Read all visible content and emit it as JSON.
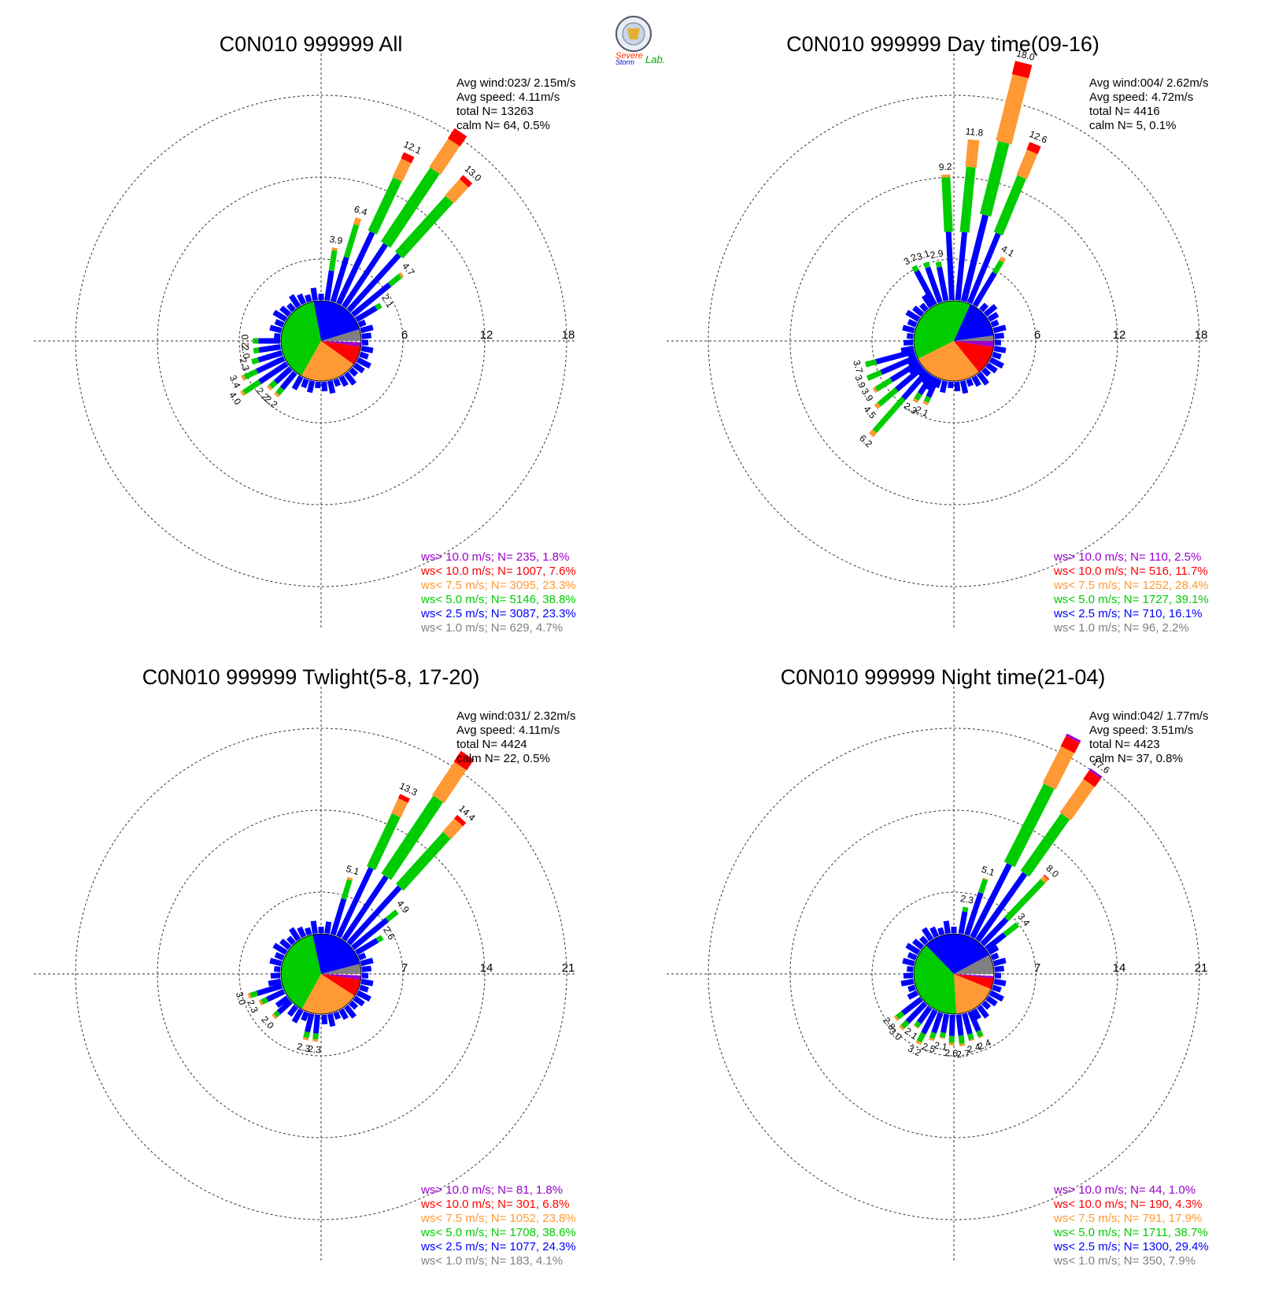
{
  "logo": {
    "line1": "Severe",
    "line2": "Storm",
    "line3": "Lab."
  },
  "speed_classes": {
    "colors": [
      "#808080",
      "#0000ff",
      "#00cc00",
      "#ff9933",
      "#ff0000",
      "#9900cc"
    ]
  },
  "chart_data": [
    {
      "type": "windrose",
      "title": "C0N010 999999 All",
      "stats": {
        "avg_wind": "Avg wind:023/ 2.15m/s",
        "avg_speed": "Avg speed: 4.11m/s",
        "total": "total N=      13263",
        "calm": "calm N=     64,   0.5%"
      },
      "ring_max": 18,
      "rings": [
        "6",
        "12",
        "18"
      ],
      "pie_percent": [
        4.7,
        23.3,
        38.8,
        23.3,
        7.6,
        1.8
      ],
      "bars": [
        {
          "dir": 8.4,
          "total": 3.9,
          "label": "3.9",
          "parts": [
            2.2,
            1.5,
            0.2
          ]
        },
        {
          "dir": 16.9,
          "total": 6.4,
          "label": "6.4",
          "parts": [
            3.4,
            2.5,
            0.5
          ]
        },
        {
          "dir": 25.3,
          "total": 12.1,
          "label": "12.1",
          "parts": [
            5.8,
            4.3,
            1.5,
            0.5
          ]
        },
        {
          "dir": 33.8,
          "total": 15.4,
          "label": "",
          "parts": [
            5.5,
            6.5,
            2.5,
            0.9
          ]
        },
        {
          "dir": 42.2,
          "total": 13.0,
          "label": "13.0",
          "parts": [
            5.5,
            5.5,
            1.6,
            0.4
          ]
        },
        {
          "dir": 50.6,
          "total": 4.7,
          "label": "4.7",
          "parts": [
            3.5,
            1.0,
            0.2
          ]
        },
        {
          "dir": 59.1,
          "total": 2.1,
          "label": "2.1",
          "parts": [
            1.7,
            0.4
          ]
        },
        {
          "dir": 219.4,
          "total": 2.2,
          "label": "2.2",
          "parts": [
            1.5,
            0.5,
            0.2
          ]
        },
        {
          "dir": 227.8,
          "total": 2.2,
          "label": "2.2",
          "parts": [
            1.5,
            0.5,
            0.2
          ]
        },
        {
          "dir": 236.3,
          "total": 4.0,
          "label": "4.0",
          "parts": [
            2.4,
            1.4,
            0.2
          ]
        },
        {
          "dir": 244.7,
          "total": 3.4,
          "label": "3.4",
          "parts": [
            2.2,
            1.0,
            0.2
          ]
        },
        {
          "dir": 253.1,
          "total": 2.3,
          "label": "2.3",
          "parts": [
            1.8,
            0.5
          ]
        },
        {
          "dir": 261.6,
          "total": 2.0,
          "label": "2.0",
          "parts": [
            1.6,
            0.4
          ]
        },
        {
          "dir": 270.0,
          "total": 2.0,
          "label": "2.0",
          "parts": [
            1.6,
            0.4
          ]
        }
      ]
    },
    {
      "type": "windrose",
      "title": "C0N010 999999 Day time(09-16)",
      "stats": {
        "avg_wind": "Avg wind:004/ 2.62m/s",
        "avg_speed": "Avg speed: 4.72m/s",
        "total": "total N=       4416",
        "calm": "calm N=      5,   0.1%"
      },
      "ring_max": 18,
      "rings": [
        "6",
        "12",
        "18"
      ],
      "pie_percent": [
        2.2,
        16.1,
        39.1,
        28.4,
        11.7,
        2.5
      ],
      "bars": [
        {
          "dir": 331.9,
          "total": 3.2,
          "label": "3.2",
          "parts": [
            2.8,
            0.4
          ]
        },
        {
          "dir": 340.3,
          "total": 3.1,
          "label": "3.1",
          "parts": [
            2.7,
            0.4
          ]
        },
        {
          "dir": 348.8,
          "total": 2.9,
          "label": "2.9",
          "parts": [
            2.5,
            0.4
          ]
        },
        {
          "dir": 357.2,
          "total": 9.2,
          "label": "9.2",
          "parts": [
            5.0,
            4.0,
            0.2
          ]
        },
        {
          "dir": 5.6,
          "total": 11.8,
          "label": "11.8",
          "parts": [
            5.0,
            4.8,
            2.0
          ]
        },
        {
          "dir": 14.1,
          "total": 18.0,
          "label": "18.0",
          "parts": [
            6.5,
            5.5,
            5.0,
            1.0
          ]
        },
        {
          "dir": 22.5,
          "total": 12.6,
          "label": "12.6",
          "parts": [
            5.5,
            4.5,
            2.0,
            0.6
          ]
        },
        {
          "dir": 30.9,
          "total": 4.1,
          "label": "4.1",
          "parts": [
            2.8,
            1.0,
            0.3
          ]
        },
        {
          "dir": 204.4,
          "total": 2.1,
          "label": "2.1",
          "parts": [
            1.5,
            0.4,
            0.2
          ]
        },
        {
          "dir": 212.8,
          "total": 2.3,
          "label": "2.3",
          "parts": [
            1.6,
            0.5,
            0.2
          ]
        },
        {
          "dir": 221.3,
          "total": 6.2,
          "label": "6.2",
          "parts": [
            2.6,
            3.2,
            0.4
          ]
        },
        {
          "dir": 229.7,
          "total": 4.5,
          "label": "4.5",
          "parts": [
            2.5,
            1.7,
            0.3
          ]
        },
        {
          "dir": 238.1,
          "total": 3.9,
          "label": "3.9",
          "parts": [
            2.4,
            1.3,
            0.2
          ]
        },
        {
          "dir": 246.6,
          "total": 3.9,
          "label": "3.9",
          "parts": [
            2.8,
            1.1
          ]
        },
        {
          "dir": 255.0,
          "total": 3.7,
          "label": "3.7",
          "parts": [
            2.9,
            0.8
          ]
        }
      ]
    },
    {
      "type": "windrose",
      "title": "C0N010 999999 Twlight(5-8, 17-20)",
      "stats": {
        "avg_wind": "Avg wind:031/ 2.32m/s",
        "avg_speed": "Avg speed: 4.11m/s",
        "total": "total N=       4424",
        "calm": "calm N=     22,   0.5%"
      },
      "ring_max": 21,
      "rings": [
        "7",
        "14",
        "21"
      ],
      "pie_percent": [
        4.1,
        24.3,
        38.6,
        23.8,
        6.8,
        1.8
      ],
      "bars": [
        {
          "dir": 16.9,
          "total": 5.1,
          "label": "5.1",
          "parts": [
            3.2,
            1.7,
            0.2
          ]
        },
        {
          "dir": 25.3,
          "total": 13.3,
          "label": "13.3",
          "parts": [
            6.5,
            5.0,
            1.4,
            0.4
          ]
        },
        {
          "dir": 33.8,
          "total": 19.0,
          "label": "",
          "parts": [
            6.5,
            8.0,
            3.4,
            1.1
          ]
        },
        {
          "dir": 42.2,
          "total": 14.4,
          "label": "14.4",
          "parts": [
            6.5,
            6.0,
            1.5,
            0.4
          ]
        },
        {
          "dir": 50.6,
          "total": 4.9,
          "label": "4.9",
          "parts": [
            3.8,
            1.1
          ]
        },
        {
          "dir": 59.1,
          "total": 2.6,
          "label": "2.6",
          "parts": [
            2.1,
            0.5
          ]
        },
        {
          "dir": 185.0,
          "total": 2.3,
          "label": "2.3",
          "parts": [
            1.6,
            0.5,
            0.2
          ]
        },
        {
          "dir": 193.4,
          "total": 2.3,
          "label": "2.3",
          "parts": [
            1.6,
            0.5,
            0.2
          ]
        },
        {
          "dir": 227.8,
          "total": 2.0,
          "label": "2.0",
          "parts": [
            1.4,
            0.4,
            0.2
          ]
        },
        {
          "dir": 244.7,
          "total": 2.3,
          "label": "2.3",
          "parts": [
            1.6,
            0.5,
            0.2
          ]
        },
        {
          "dir": 253.1,
          "total": 3.0,
          "label": "3.0",
          "parts": [
            2.2,
            0.6,
            0.2
          ]
        }
      ]
    },
    {
      "type": "windrose",
      "title": "C0N010 999999 Night time(21-04)",
      "stats": {
        "avg_wind": "Avg wind:042/ 1.77m/s",
        "avg_speed": "Avg speed: 3.51m/s",
        "total": "total N=       4423",
        "calm": "calm N=     37,   0.8%"
      },
      "ring_max": 21,
      "rings": [
        "7",
        "14",
        "21"
      ],
      "pie_percent": [
        7.9,
        29.4,
        38.7,
        17.9,
        4.3,
        1.0
      ],
      "bars": [
        {
          "dir": 10.0,
          "total": 2.3,
          "label": "2.3",
          "parts": [
            1.9,
            0.4
          ]
        },
        {
          "dir": 18.4,
          "total": 5.1,
          "label": "5.1",
          "parts": [
            3.8,
            1.2,
            0.1
          ]
        },
        {
          "dir": 26.9,
          "total": 19.2,
          "label": "",
          "parts": [
            7.0,
            7.5,
            3.5,
            1.0,
            0.2
          ]
        },
        {
          "dir": 35.3,
          "total": 17.6,
          "label": "17.6",
          "parts": [
            7.0,
            6.0,
            3.5,
            0.9,
            0.2
          ]
        },
        {
          "dir": 43.8,
          "total": 8.0,
          "label": "8.0",
          "parts": [
            3.0,
            4.5,
            0.4,
            0.1
          ]
        },
        {
          "dir": 52.2,
          "total": 3.4,
          "label": "3.4",
          "parts": [
            2.0,
            1.4
          ]
        },
        {
          "dir": 156.6,
          "total": 2.4,
          "label": "2.4",
          "parts": [
            1.8,
            0.5,
            0.1
          ]
        },
        {
          "dir": 165.0,
          "total": 2.4,
          "label": "2.4",
          "parts": [
            1.8,
            0.5,
            0.1
          ]
        },
        {
          "dir": 173.4,
          "total": 2.7,
          "label": "2.7",
          "parts": [
            1.8,
            0.7,
            0.2
          ]
        },
        {
          "dir": 181.9,
          "total": 2.6,
          "label": "2.6",
          "parts": [
            1.8,
            0.6,
            0.2
          ]
        },
        {
          "dir": 190.3,
          "total": 2.1,
          "label": "2.1",
          "parts": [
            1.6,
            0.4,
            0.1
          ]
        },
        {
          "dir": 198.8,
          "total": 2.5,
          "label": "2.5",
          "parts": [
            1.8,
            0.5,
            0.2
          ]
        },
        {
          "dir": 207.2,
          "total": 3.2,
          "label": "3.2",
          "parts": [
            2.2,
            0.8,
            0.2
          ]
        },
        {
          "dir": 215.6,
          "total": 2.1,
          "label": "2.1",
          "parts": [
            1.6,
            0.4,
            0.1
          ]
        },
        {
          "dir": 224.1,
          "total": 3.0,
          "label": "3.0",
          "parts": [
            2.2,
            0.6,
            0.2
          ]
        },
        {
          "dir": 232.5,
          "total": 2.8,
          "label": "2.8",
          "parts": [
            2.0,
            0.6,
            0.2
          ]
        }
      ]
    }
  ],
  "legends": [
    [
      "ws> 10.0 m/s; N=   235,  1.8%",
      "ws< 10.0 m/s; N=  1007,  7.6%",
      "ws<  7.5 m/s; N=  3095, 23.3%",
      "ws<  5.0 m/s; N=  5146, 38.8%",
      "ws<  2.5 m/s; N=  3087, 23.3%",
      "ws<  1.0 m/s; N=   629,  4.7%"
    ],
    [
      "ws> 10.0 m/s; N=   110,  2.5%",
      "ws< 10.0 m/s; N=   516, 11.7%",
      "ws<  7.5 m/s; N=  1252, 28.4%",
      "ws<  5.0 m/s; N=  1727, 39.1%",
      "ws<  2.5 m/s; N=   710, 16.1%",
      "ws<  1.0 m/s; N=    96,  2.2%"
    ],
    [
      "ws> 10.0 m/s; N=    81,  1.8%",
      "ws< 10.0 m/s; N=   301,  6.8%",
      "ws<  7.5 m/s; N=  1052, 23.8%",
      "ws<  5.0 m/s; N=  1708, 38.6%",
      "ws<  2.5 m/s; N=  1077, 24.3%",
      "ws<  1.0 m/s; N=   183,  4.1%"
    ],
    [
      "ws> 10.0 m/s; N=    44,  1.0%",
      "ws< 10.0 m/s; N=   190,  4.3%",
      "ws<  7.5 m/s; N=   791, 17.9%",
      "ws<  5.0 m/s; N=  1711, 38.7%",
      "ws<  2.5 m/s; N=  1300, 29.4%",
      "ws<  1.0 m/s; N=   350,  7.9%"
    ]
  ]
}
